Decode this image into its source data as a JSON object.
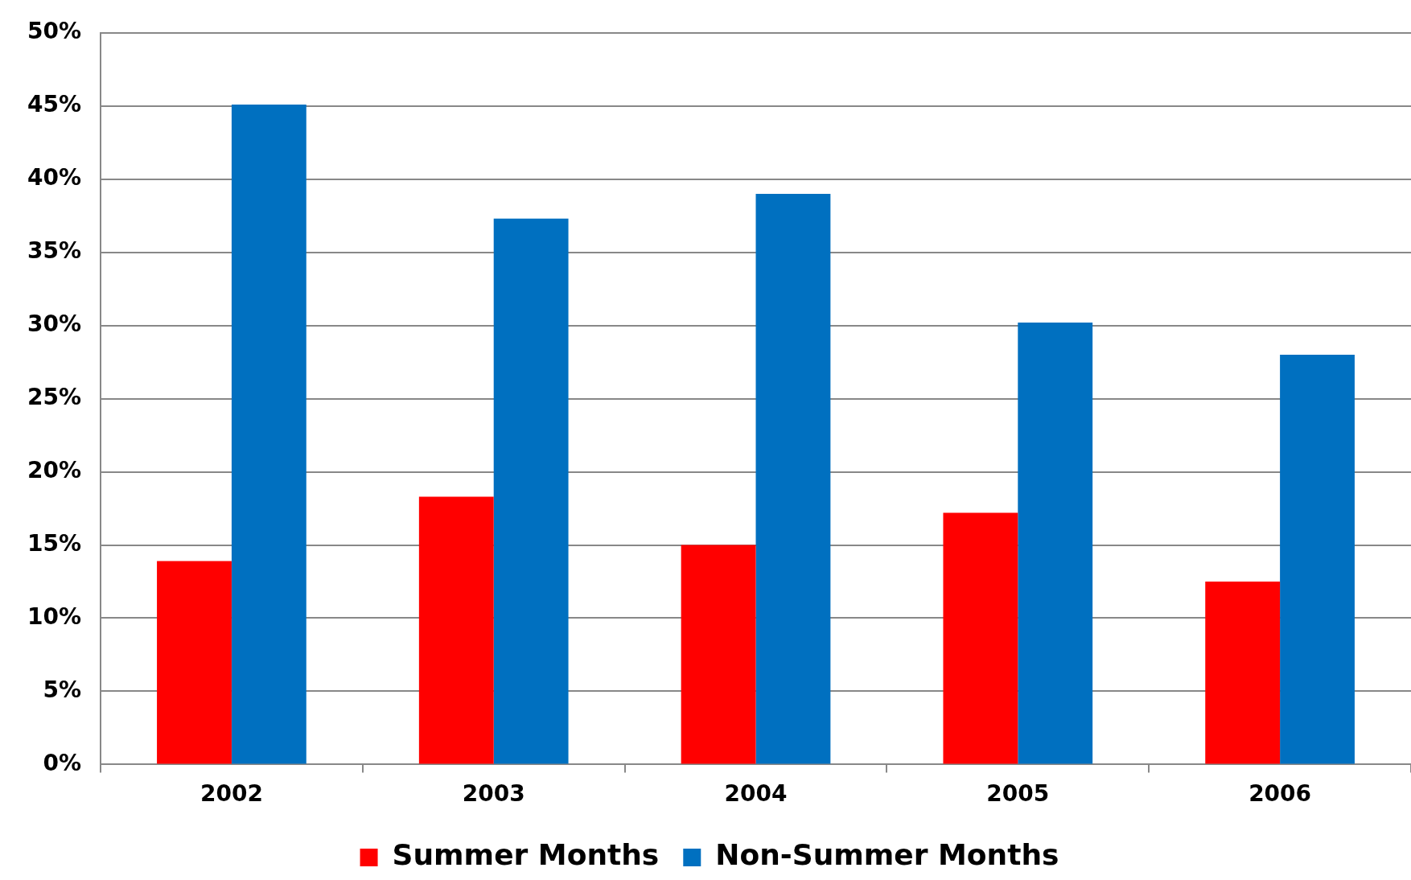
{
  "chart_data": {
    "type": "bar",
    "categories": [
      "2002",
      "2003",
      "2004",
      "2005",
      "2006"
    ],
    "series": [
      {
        "name": "Summer Months",
        "color": "#ff0000",
        "values": [
          13.9,
          18.3,
          15.0,
          17.2,
          12.5
        ]
      },
      {
        "name": "Non-Summer Months",
        "color": "#0070c0",
        "values": [
          45.1,
          37.3,
          39.0,
          30.2,
          28.0
        ]
      }
    ],
    "ylim": [
      0,
      50
    ],
    "yticks": [
      {
        "value": 0,
        "label": "0%"
      },
      {
        "value": 5,
        "label": "5%"
      },
      {
        "value": 10,
        "label": "10%"
      },
      {
        "value": 15,
        "label": "15%"
      },
      {
        "value": 20,
        "label": "20%"
      },
      {
        "value": 25,
        "label": "25%"
      },
      {
        "value": 30,
        "label": "30%"
      },
      {
        "value": 35,
        "label": "35%"
      },
      {
        "value": 40,
        "label": "40%"
      },
      {
        "value": 45,
        "label": "45%"
      },
      {
        "value": 50,
        "label": "50%"
      }
    ],
    "grid": "y",
    "legend": "bottom"
  }
}
